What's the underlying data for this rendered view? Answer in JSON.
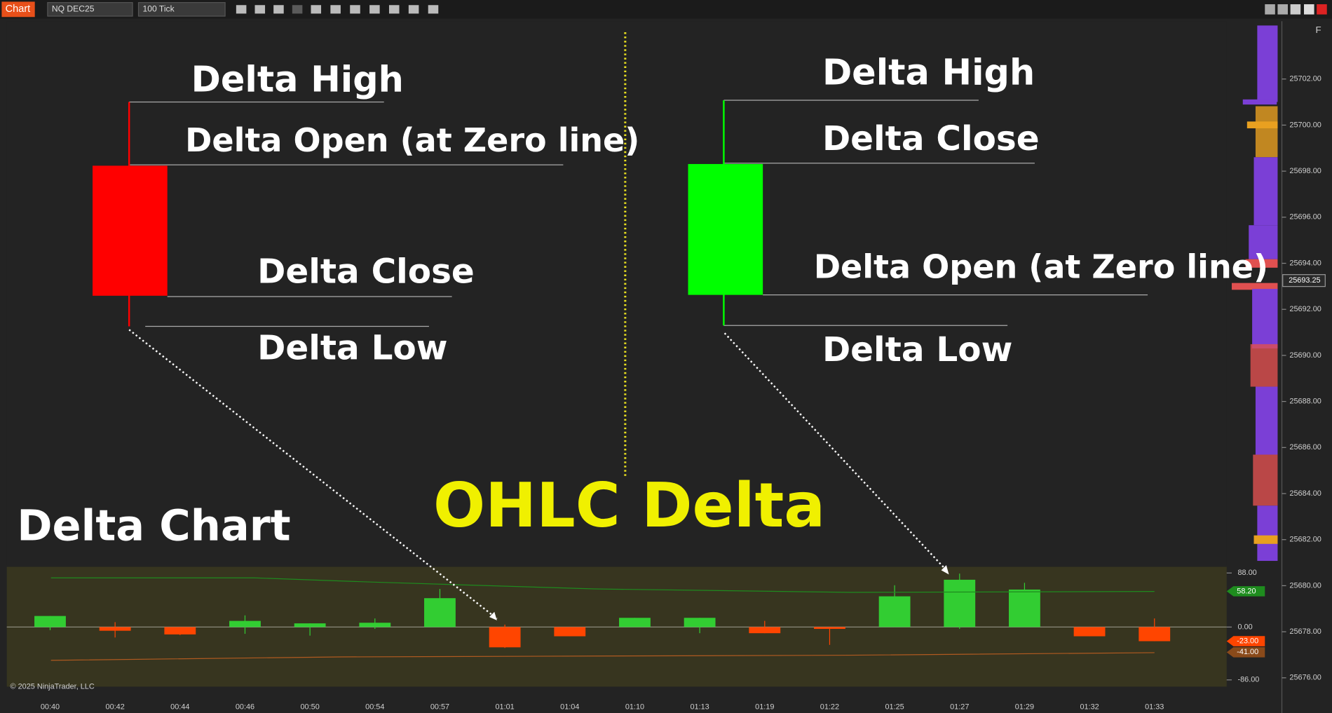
{
  "toolbar": {
    "tab": "Chart",
    "instrument": "NQ DEC25",
    "interval": "100 Tick",
    "float_button": "F"
  },
  "annotations": {
    "title": "OHLC Delta",
    "panel_label": "Delta Chart",
    "left": {
      "high": "Delta High",
      "open": "Delta Open (at Zero line)",
      "close": "Delta Close",
      "low": "Delta Low"
    },
    "right": {
      "high": "Delta High",
      "close": "Delta Close",
      "open": "Delta Open (at Zero line)",
      "low": "Delta Low"
    }
  },
  "price_axis": {
    "ticks": [
      {
        "value": 25702,
        "label": "25702.00"
      },
      {
        "value": 25700,
        "label": "25700.00"
      },
      {
        "value": 25698,
        "label": "25698.00"
      },
      {
        "value": 25696,
        "label": "25696.00"
      },
      {
        "value": 25694,
        "label": "25694.00"
      },
      {
        "value": 25692,
        "label": "25692.00"
      },
      {
        "value": 25690,
        "label": "25690.00"
      },
      {
        "value": 25688,
        "label": "25688.00"
      },
      {
        "value": 25686,
        "label": "25686.00"
      },
      {
        "value": 25684,
        "label": "25684.00"
      },
      {
        "value": 25682,
        "label": "25682.00"
      },
      {
        "value": 25680,
        "label": "25680.00"
      },
      {
        "value": 25678,
        "label": "25678.00"
      },
      {
        "value": 25676,
        "label": "25676.00"
      }
    ],
    "current": {
      "value": 25693.25,
      "label": "25693.25"
    }
  },
  "copyright": "© 2025 NinjaTrader, LLC",
  "chart_data": {
    "type": "candlestick",
    "categories": [
      "00:40",
      "00:42",
      "00:44",
      "00:46",
      "00:50",
      "00:54",
      "00:57",
      "01:01",
      "01:04",
      "01:10",
      "01:13",
      "01:19",
      "01:22",
      "01:25",
      "01:27",
      "01:29",
      "01:32",
      "01:33"
    ],
    "open": [
      0,
      0,
      0,
      0,
      0,
      0,
      0,
      0,
      0,
      0,
      0,
      0,
      0,
      0,
      0,
      0,
      0,
      0
    ],
    "high": [
      18,
      8,
      0,
      19,
      6,
      14,
      62,
      4,
      0,
      15,
      15,
      10,
      0,
      68,
      87,
      72,
      0,
      14
    ],
    "low": [
      -5,
      -17,
      -13,
      -11,
      -14,
      -3,
      0,
      -34,
      -15,
      0,
      -10,
      -10,
      -29,
      0,
      -3,
      0,
      -15,
      -23
    ],
    "close": [
      18,
      -6,
      -12,
      10,
      6,
      7,
      47,
      -33,
      -15,
      15,
      15,
      -10,
      -3,
      50,
      77,
      61,
      -15,
      -23
    ],
    "colors": {
      "up": "#32cd32",
      "down": "#ff4500"
    },
    "ylim": [
      -97,
      98
    ],
    "yticks": [
      {
        "value": 88,
        "label": "88.00"
      },
      {
        "value": 0,
        "label": "0.00"
      },
      {
        "value": -86,
        "label": "-86.00"
      }
    ],
    "markers": [
      {
        "value": 58.2,
        "label": "58.20",
        "color": "#1e8c1e"
      },
      {
        "value": -23,
        "label": "-23.00",
        "color": "#ff4500"
      },
      {
        "value": -41,
        "label": "-41.00",
        "color": "#8a4a1a"
      }
    ]
  }
}
